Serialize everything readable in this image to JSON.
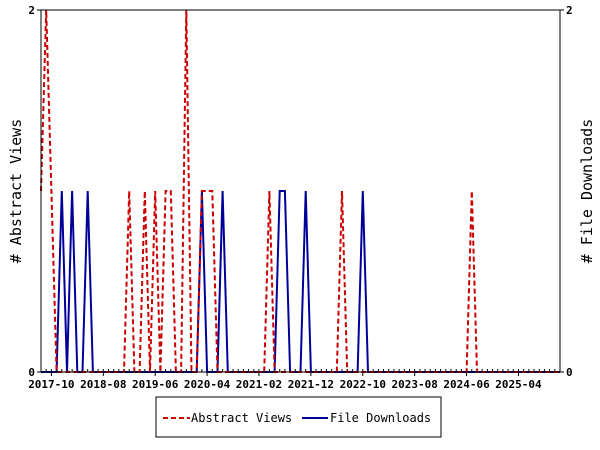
{
  "chart_data": {
    "type": "line",
    "ylabel_left": "# Abstract Views",
    "ylabel_right": "# File Downloads",
    "yrange": [
      0,
      2
    ],
    "left_ticks": [
      "0",
      "2"
    ],
    "right_ticks": [
      "0",
      "2"
    ],
    "xrange": [
      "2017-08",
      "2025-12"
    ],
    "x_ticks": [
      "2017-10",
      "2018-08",
      "2019-06",
      "2020-04",
      "2021-02",
      "2021-12",
      "2022-10",
      "2023-08",
      "2024-06",
      "2025-04"
    ],
    "legend_position": "bottom",
    "series": [
      {
        "name": "Abstract Views",
        "color": "#cc0000",
        "style": "dashed",
        "points": [
          [
            "2017-08",
            1
          ],
          [
            "2017-09",
            2
          ],
          [
            "2017-10",
            1
          ],
          [
            "2017-11",
            0
          ],
          [
            "2017-12",
            0
          ],
          [
            "2018-01",
            0
          ],
          [
            "2018-02",
            0
          ],
          [
            "2018-03",
            0
          ],
          [
            "2018-04",
            0
          ],
          [
            "2018-05",
            0
          ],
          [
            "2018-06",
            0
          ],
          [
            "2018-07",
            0
          ],
          [
            "2018-08",
            0
          ],
          [
            "2018-09",
            0
          ],
          [
            "2018-10",
            0
          ],
          [
            "2018-11",
            0
          ],
          [
            "2018-12",
            0
          ],
          [
            "2019-01",
            1
          ],
          [
            "2019-02",
            0
          ],
          [
            "2019-03",
            0
          ],
          [
            "2019-04",
            1
          ],
          [
            "2019-05",
            0
          ],
          [
            "2019-06",
            1
          ],
          [
            "2019-07",
            0
          ],
          [
            "2019-08",
            1
          ],
          [
            "2019-09",
            1
          ],
          [
            "2019-10",
            0
          ],
          [
            "2019-11",
            0
          ],
          [
            "2019-12",
            2
          ],
          [
            "2020-01",
            0
          ],
          [
            "2020-02",
            0
          ],
          [
            "2020-03",
            1
          ],
          [
            "2020-04",
            1
          ],
          [
            "2020-05",
            1
          ],
          [
            "2020-06",
            0
          ],
          [
            "2020-07",
            0
          ],
          [
            "2020-08",
            0
          ],
          [
            "2020-09",
            0
          ],
          [
            "2020-10",
            0
          ],
          [
            "2020-11",
            0
          ],
          [
            "2020-12",
            0
          ],
          [
            "2021-01",
            0
          ],
          [
            "2021-02",
            0
          ],
          [
            "2021-03",
            0
          ],
          [
            "2021-04",
            1
          ],
          [
            "2021-05",
            0
          ],
          [
            "2021-06",
            0
          ],
          [
            "2021-07",
            0
          ],
          [
            "2021-08",
            0
          ],
          [
            "2021-09",
            0
          ],
          [
            "2021-10",
            0
          ],
          [
            "2021-11",
            0
          ],
          [
            "2021-12",
            0
          ],
          [
            "2022-01",
            0
          ],
          [
            "2022-02",
            0
          ],
          [
            "2022-03",
            0
          ],
          [
            "2022-04",
            0
          ],
          [
            "2022-05",
            0
          ],
          [
            "2022-06",
            1
          ],
          [
            "2022-07",
            0
          ],
          [
            "2022-08",
            0
          ],
          [
            "2022-09",
            0
          ],
          [
            "2022-10",
            0
          ],
          [
            "2022-11",
            0
          ],
          [
            "2022-12",
            0
          ],
          [
            "2023-01",
            0
          ],
          [
            "2023-02",
            0
          ],
          [
            "2023-03",
            0
          ],
          [
            "2023-04",
            0
          ],
          [
            "2023-05",
            0
          ],
          [
            "2023-06",
            0
          ],
          [
            "2023-07",
            0
          ],
          [
            "2023-08",
            0
          ],
          [
            "2023-09",
            0
          ],
          [
            "2023-10",
            0
          ],
          [
            "2023-11",
            0
          ],
          [
            "2023-12",
            0
          ],
          [
            "2024-01",
            0
          ],
          [
            "2024-02",
            0
          ],
          [
            "2024-03",
            0
          ],
          [
            "2024-04",
            0
          ],
          [
            "2024-05",
            0
          ],
          [
            "2024-06",
            0
          ],
          [
            "2024-07",
            1
          ],
          [
            "2024-08",
            0
          ],
          [
            "2024-09",
            0
          ],
          [
            "2024-10",
            0
          ],
          [
            "2024-11",
            0
          ],
          [
            "2024-12",
            0
          ],
          [
            "2025-01",
            0
          ],
          [
            "2025-02",
            0
          ],
          [
            "2025-03",
            0
          ],
          [
            "2025-04",
            0
          ],
          [
            "2025-05",
            0
          ],
          [
            "2025-06",
            0
          ],
          [
            "2025-07",
            0
          ],
          [
            "2025-08",
            0
          ],
          [
            "2025-09",
            0
          ],
          [
            "2025-10",
            0
          ],
          [
            "2025-11",
            0
          ],
          [
            "2025-12",
            0
          ]
        ]
      },
      {
        "name": "File Downloads",
        "color": "#000099",
        "style": "solid",
        "points": [
          [
            "2017-08",
            0
          ],
          [
            "2017-09",
            0
          ],
          [
            "2017-10",
            0
          ],
          [
            "2017-11",
            0
          ],
          [
            "2017-12",
            1
          ],
          [
            "2018-01",
            0
          ],
          [
            "2018-02",
            1
          ],
          [
            "2018-03",
            0
          ],
          [
            "2018-04",
            0
          ],
          [
            "2018-05",
            1
          ],
          [
            "2018-06",
            0
          ],
          [
            "2018-07",
            0
          ],
          [
            "2018-08",
            0
          ],
          [
            "2018-09",
            0
          ],
          [
            "2018-10",
            0
          ],
          [
            "2018-11",
            0
          ],
          [
            "2018-12",
            0
          ],
          [
            "2019-01",
            0
          ],
          [
            "2019-02",
            0
          ],
          [
            "2019-03",
            0
          ],
          [
            "2019-04",
            0
          ],
          [
            "2019-05",
            0
          ],
          [
            "2019-06",
            0
          ],
          [
            "2019-07",
            0
          ],
          [
            "2019-08",
            0
          ],
          [
            "2019-09",
            0
          ],
          [
            "2019-10",
            0
          ],
          [
            "2019-11",
            0
          ],
          [
            "2019-12",
            0
          ],
          [
            "2020-01",
            0
          ],
          [
            "2020-02",
            0
          ],
          [
            "2020-03",
            1
          ],
          [
            "2020-04",
            0
          ],
          [
            "2020-05",
            0
          ],
          [
            "2020-06",
            0
          ],
          [
            "2020-07",
            1
          ],
          [
            "2020-08",
            0
          ],
          [
            "2020-09",
            0
          ],
          [
            "2020-10",
            0
          ],
          [
            "2020-11",
            0
          ],
          [
            "2020-12",
            0
          ],
          [
            "2021-01",
            0
          ],
          [
            "2021-02",
            0
          ],
          [
            "2021-03",
            0
          ],
          [
            "2021-04",
            0
          ],
          [
            "2021-05",
            0
          ],
          [
            "2021-06",
            1
          ],
          [
            "2021-07",
            1
          ],
          [
            "2021-08",
            0
          ],
          [
            "2021-09",
            0
          ],
          [
            "2021-10",
            0
          ],
          [
            "2021-11",
            1
          ],
          [
            "2021-12",
            0
          ],
          [
            "2022-01",
            0
          ],
          [
            "2022-02",
            0
          ],
          [
            "2022-03",
            0
          ],
          [
            "2022-04",
            0
          ],
          [
            "2022-05",
            0
          ],
          [
            "2022-06",
            0
          ],
          [
            "2022-07",
            0
          ],
          [
            "2022-08",
            0
          ],
          [
            "2022-09",
            0
          ],
          [
            "2022-10",
            1
          ],
          [
            "2022-11",
            0
          ],
          [
            "2022-12",
            0
          ],
          [
            "2023-01",
            0
          ],
          [
            "2023-02",
            0
          ],
          [
            "2023-03",
            0
          ],
          [
            "2023-04",
            0
          ],
          [
            "2023-05",
            0
          ],
          [
            "2023-06",
            0
          ],
          [
            "2023-07",
            0
          ],
          [
            "2023-08",
            0
          ],
          [
            "2023-09",
            0
          ],
          [
            "2023-10",
            0
          ],
          [
            "2023-11",
            0
          ],
          [
            "2023-12",
            0
          ],
          [
            "2024-01",
            0
          ],
          [
            "2024-02",
            0
          ],
          [
            "2024-03",
            0
          ],
          [
            "2024-04",
            0
          ],
          [
            "2024-05",
            0
          ],
          [
            "2024-06",
            0
          ],
          [
            "2024-07",
            0
          ],
          [
            "2024-08",
            0
          ],
          [
            "2024-09",
            0
          ],
          [
            "2024-10",
            0
          ],
          [
            "2024-11",
            0
          ],
          [
            "2024-12",
            0
          ],
          [
            "2025-01",
            0
          ],
          [
            "2025-02",
            0
          ],
          [
            "2025-03",
            0
          ],
          [
            "2025-04",
            0
          ],
          [
            "2025-05",
            0
          ],
          [
            "2025-06",
            0
          ],
          [
            "2025-07",
            0
          ],
          [
            "2025-08",
            0
          ],
          [
            "2025-09",
            0
          ],
          [
            "2025-10",
            0
          ],
          [
            "2025-11",
            0
          ],
          [
            "2025-12",
            0
          ]
        ]
      }
    ]
  }
}
